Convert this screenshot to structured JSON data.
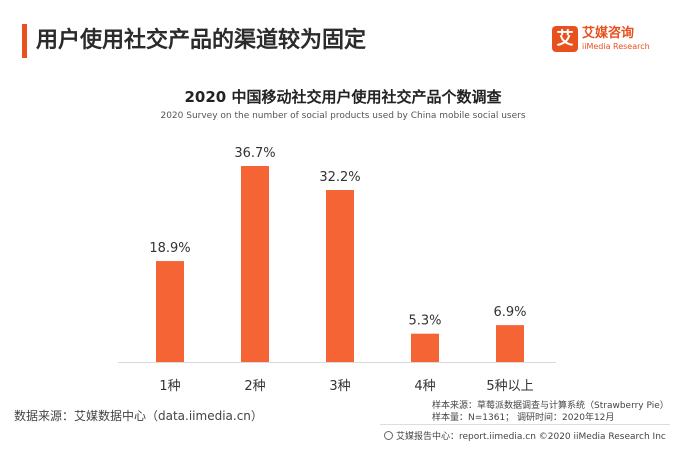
{
  "header": {
    "headline": "用户使用社交产品的渠道较为固定",
    "logo_mark": "艾",
    "logo_cn": "艾媒咨询",
    "logo_en": "iiMedia Research"
  },
  "chart_data": {
    "type": "bar",
    "title": "2020 中国移动社交用户使用社交产品个数调查",
    "subtitle": "2020 Survey on the number of social products used by China mobile social users",
    "categories": [
      "1种",
      "2种",
      "3种",
      "4种",
      "5种以上"
    ],
    "values": [
      18.9,
      36.7,
      32.2,
      5.3,
      6.9
    ],
    "value_labels": [
      "18.9%",
      "36.7%",
      "32.2%",
      "5.3%",
      "6.9%"
    ],
    "unit": "%",
    "ylim": [
      0,
      36.7
    ],
    "grid": false,
    "bar_color": "#f46434"
  },
  "footer": {
    "source_left": "数据来源：艾媒数据中心（data.iimedia.cn）",
    "sample_source": "样本来源：草莓派数据调查与计算系统（Strawberry Pie）",
    "sample_info": "样本量：N=1361；  调研时间：2020年12月",
    "report_center": "艾媒报告中心：report.iimedia.cn    ©2020  iiMedia Research  Inc"
  }
}
